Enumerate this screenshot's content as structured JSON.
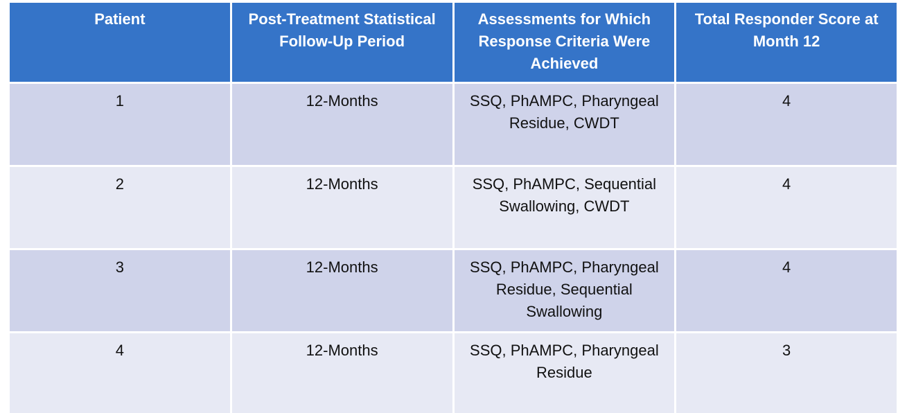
{
  "chart_data": {
    "type": "table",
    "title": "",
    "columns": [
      "Patient",
      "Post-Treatment Statistical Follow-Up Period",
      "Assessments for Which Response Criteria Were Achieved",
      "Total Responder Score at Month 12"
    ],
    "rows": [
      [
        "1",
        "12-Months",
        "SSQ, PhAMPC, Pharyngeal Residue, CWDT",
        "4"
      ],
      [
        "2",
        "12-Months",
        "SSQ, PhAMPC, Sequential Swallowing, CWDT",
        "4"
      ],
      [
        "3",
        "12-Months",
        "SSQ, PhAMPC, Pharyngeal Residue, Sequential Swallowing",
        "4"
      ],
      [
        "4",
        "12-Months",
        "SSQ, PhAMPC, Pharyngeal Residue",
        "3"
      ]
    ],
    "layout": {
      "banded_rows": true,
      "header_position": "top",
      "text_align": "center"
    }
  },
  "colors": {
    "header_bg": "#3574C8",
    "header_text": "#FFFFFF",
    "row_band_dark": "#CFD3EA",
    "row_band_light": "#E7E9F4",
    "body_text": "#111111",
    "grid_gap": "#FFFFFF"
  },
  "display": {
    "headers": [
      "Patient",
      "Post-Treatment Statistical\nFollow-Up Period",
      "Assessments for Which\nResponse Criteria Were\nAchieved",
      "Total Responder Score at\nMonth 12"
    ],
    "rows": [
      {
        "patient": "1",
        "period": "12-Months",
        "assessments": "SSQ, PhAMPC, Pharyngeal\nResidue, CWDT",
        "score": "4"
      },
      {
        "patient": "2",
        "period": "12-Months",
        "assessments": "SSQ, PhAMPC, Sequential\nSwallowing, CWDT",
        "score": "4"
      },
      {
        "patient": "3",
        "period": "12-Months",
        "assessments": "SSQ, PhAMPC, Pharyngeal\nResidue, Sequential\nSwallowing",
        "score": "4"
      },
      {
        "patient": "4",
        "period": "12-Months",
        "assessments": "SSQ, PhAMPC, Pharyngeal\nResidue",
        "score": "3"
      }
    ]
  }
}
